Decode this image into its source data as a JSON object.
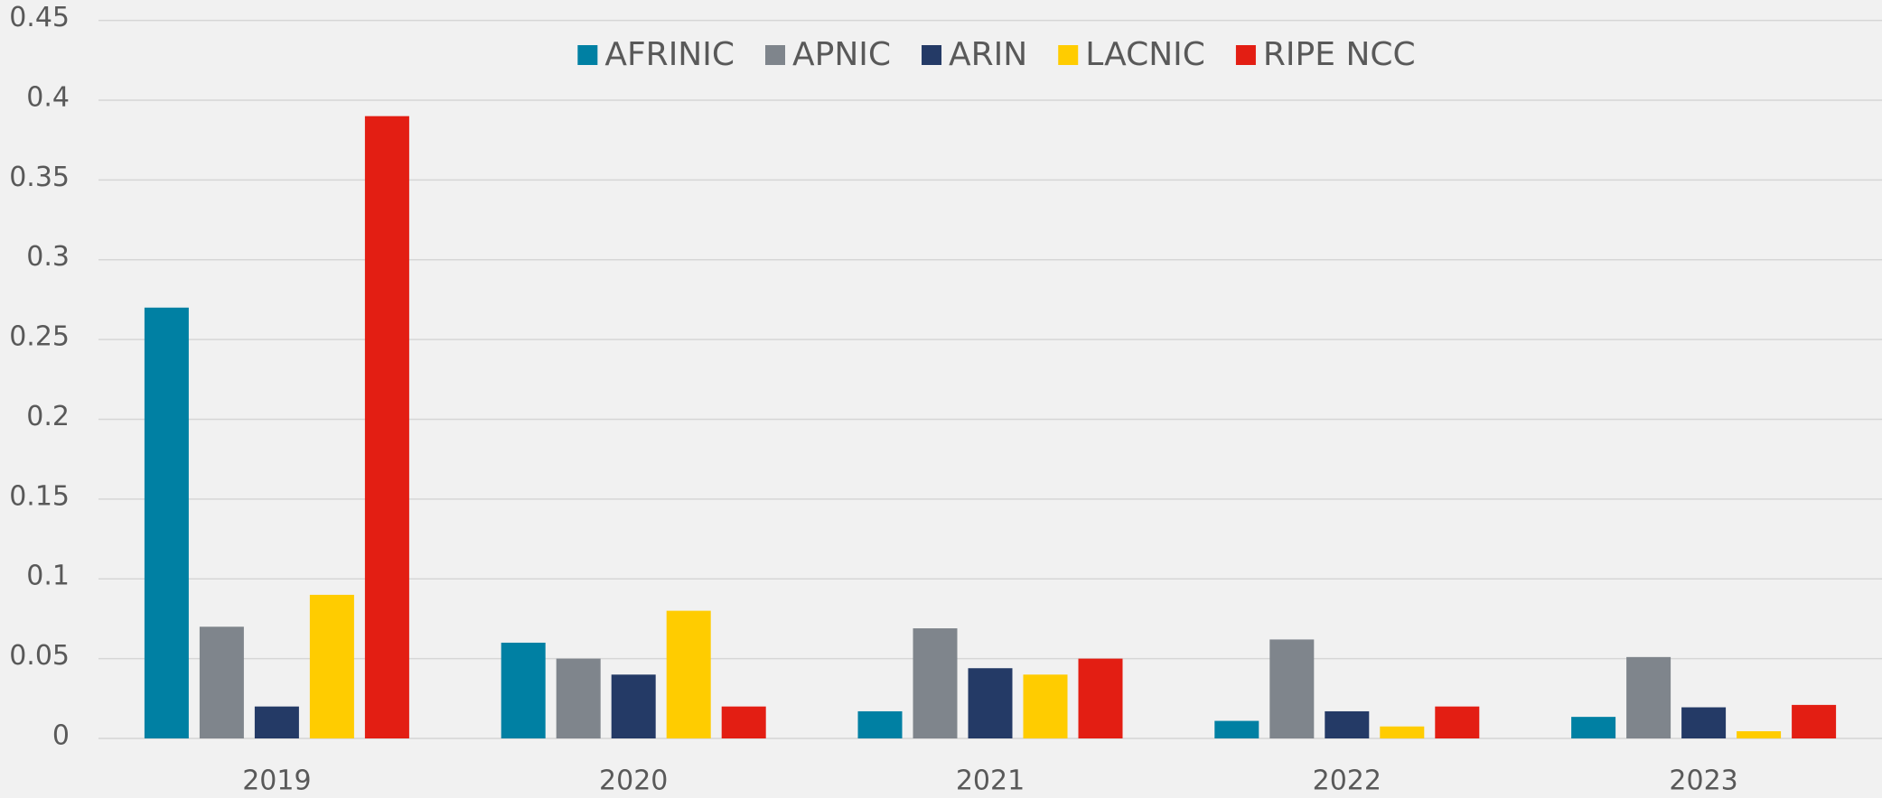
{
  "chart_data": {
    "type": "bar",
    "categories": [
      "2019",
      "2020",
      "2021",
      "2022",
      "2023"
    ],
    "series": [
      {
        "name": "AFRINIC",
        "color": "#0080a3",
        "values": [
          0.27,
          0.06,
          0.017,
          0.011,
          0.0135
        ]
      },
      {
        "name": "APNIC",
        "color": "#7f858c",
        "values": [
          0.07,
          0.05,
          0.069,
          0.062,
          0.051
        ]
      },
      {
        "name": "ARIN",
        "color": "#243a66",
        "values": [
          0.02,
          0.04,
          0.044,
          0.017,
          0.0195
        ]
      },
      {
        "name": "LACNIC",
        "color": "#ffcc00",
        "values": [
          0.09,
          0.08,
          0.04,
          0.0075,
          0.0045
        ]
      },
      {
        "name": "RIPE NCC",
        "color": "#e31e13",
        "values": [
          0.39,
          0.02,
          0.05,
          0.02,
          0.021
        ]
      }
    ],
    "ylim": [
      0,
      0.45
    ],
    "yticks": [
      0,
      0.05,
      0.1,
      0.15,
      0.2,
      0.25,
      0.3,
      0.35,
      0.4,
      0.45
    ],
    "grid": true,
    "legend": "top"
  }
}
